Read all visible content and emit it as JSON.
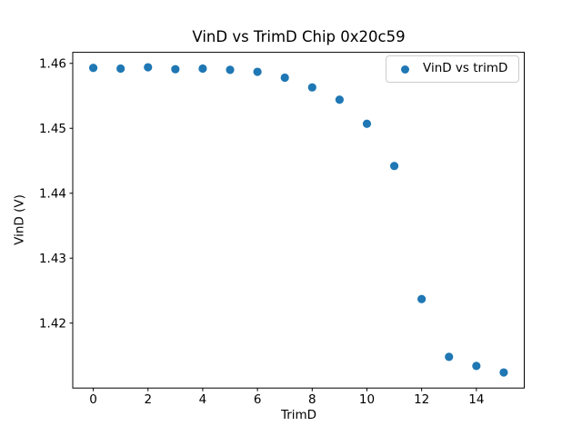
{
  "figure": {
    "title": "VinD vs TrimD Chip 0x20c59",
    "background_color": "#ffffff"
  },
  "chart_data": {
    "type": "scatter",
    "title": "VinD vs TrimD Chip 0x20c59",
    "xlabel": "TrimD",
    "ylabel": "VinD (V)",
    "legend": {
      "entries": [
        "VinD vs trimD"
      ],
      "position": "upper right",
      "marker": "circle",
      "border_color": "#cccccc"
    },
    "marker_color": "#1f77b4",
    "grid": false,
    "x": [
      0,
      1,
      2,
      3,
      4,
      5,
      6,
      7,
      8,
      9,
      10,
      11,
      12,
      13,
      14,
      15
    ],
    "y": [
      1.4593,
      1.4592,
      1.4594,
      1.4591,
      1.4592,
      1.459,
      1.4587,
      1.4578,
      1.4563,
      1.4544,
      1.4507,
      1.4442,
      1.4237,
      1.4148,
      1.4134,
      1.4124
    ],
    "xlim": [
      -0.75,
      15.75
    ],
    "ylim": [
      1.41,
      1.4617
    ],
    "xticks": [
      0,
      2,
      4,
      6,
      8,
      10,
      12,
      14
    ],
    "yticks": [
      1.42,
      1.43,
      1.44,
      1.45,
      1.46
    ],
    "ytick_decimals": 2
  }
}
